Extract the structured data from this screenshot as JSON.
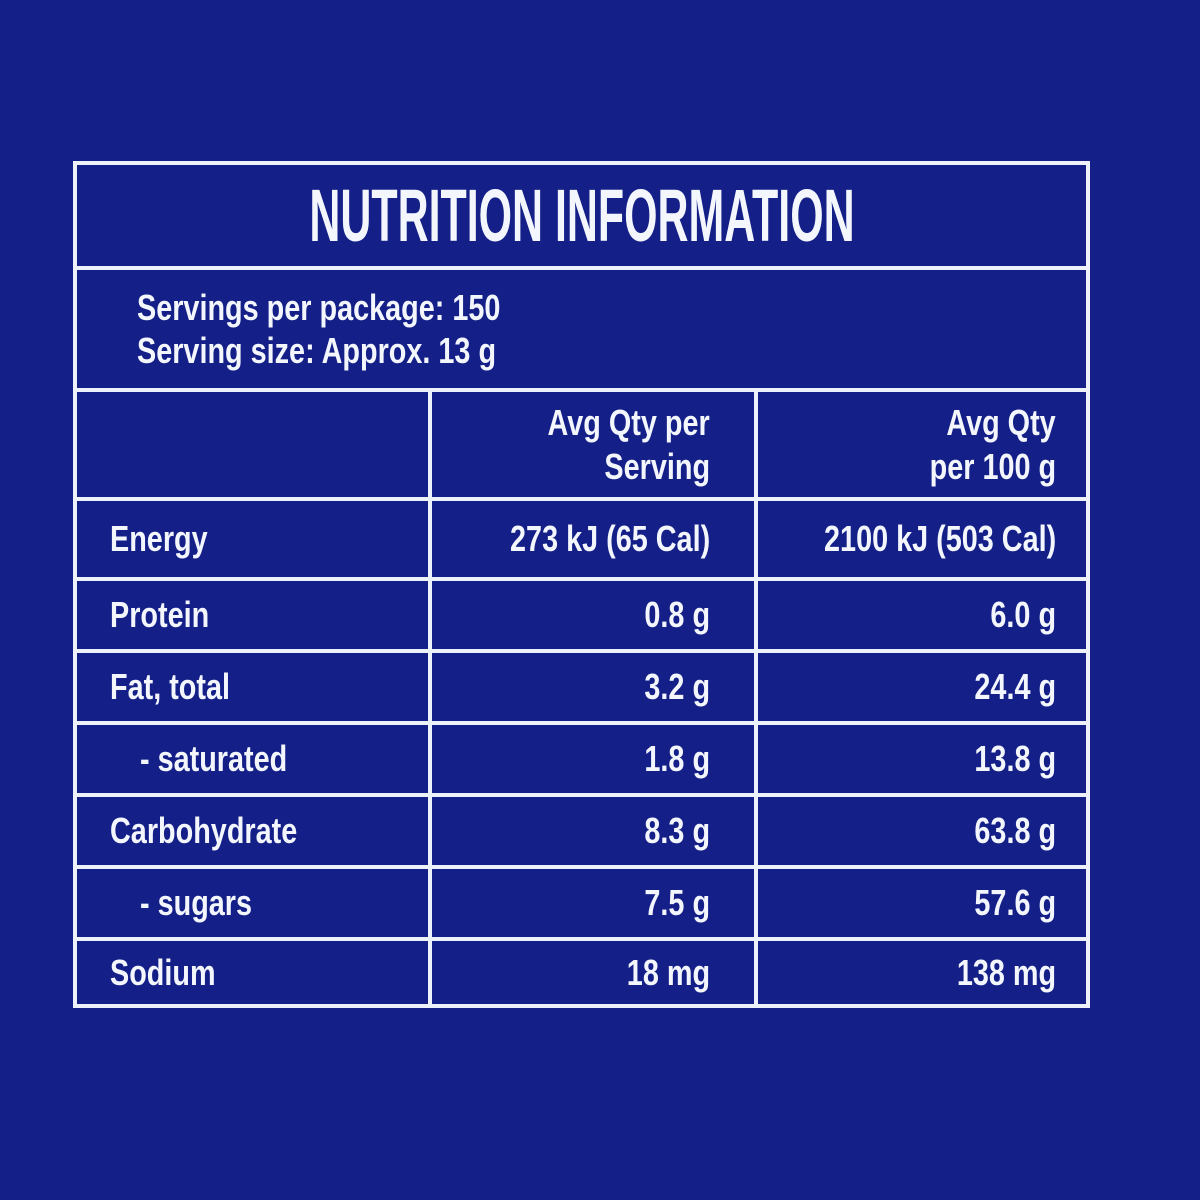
{
  "colors": {
    "page_bg": "#141F87",
    "cell_bg": "#141F87",
    "line": "#EDF2FA",
    "text": "#F3F7FD"
  },
  "table": {
    "title": "NUTRITION INFORMATION",
    "serving_info": {
      "line1": "Servings per package: 150",
      "line2": "Serving size: Approx. 13 g"
    },
    "columns": {
      "col2_line1": "Avg Qty per",
      "col2_line2": "Serving",
      "col3_line1": "Avg Qty",
      "col3_line2": "per 100 g"
    },
    "rows": [
      {
        "label": "Energy",
        "per_serving": "273 kJ (65 Cal)",
        "per_100g": "2100 kJ (503 Cal)"
      },
      {
        "label": "Protein",
        "per_serving": "0.8 g",
        "per_100g": "6.0 g"
      },
      {
        "label": "Fat, total",
        "per_serving": "3.2 g",
        "per_100g": "24.4 g"
      },
      {
        "label": "- saturated",
        "per_serving": "1.8 g",
        "per_100g": "13.8 g"
      },
      {
        "label": "Carbohydrate",
        "per_serving": "8.3 g",
        "per_100g": "63.8 g"
      },
      {
        "label": "- sugars",
        "per_serving": "7.5 g",
        "per_100g": "57.6 g"
      },
      {
        "label": "Sodium",
        "per_serving": "18 mg",
        "per_100g": "138 mg"
      }
    ]
  }
}
